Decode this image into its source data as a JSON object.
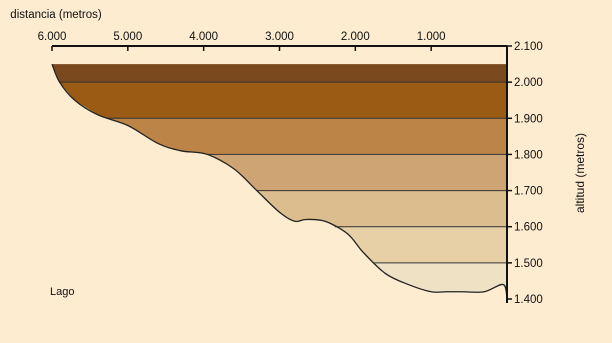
{
  "colors": {
    "background": "#fdecd0",
    "axis": "#111111",
    "profile_line": "#222222",
    "bands": [
      "#efe2c4",
      "#e7d0a6",
      "#dcbd8e",
      "#cea474",
      "#bd8448",
      "#9b5b14",
      "#7a4a1e"
    ]
  },
  "chart_data": {
    "type": "area",
    "orientation": "rotated 180 degrees",
    "xlabel": "distancia (metros)",
    "ylabel": "altitud (metros)",
    "xlim": [
      0,
      6000
    ],
    "ylim": [
      1400,
      2100
    ],
    "x_ticks": [
      1000,
      2000,
      3000,
      4000,
      5000,
      6000
    ],
    "x_tick_labels": [
      "1.000",
      "2.000",
      "3.000",
      "4.000",
      "5.000",
      "6.000"
    ],
    "y_ticks": [
      1400,
      1500,
      1600,
      1700,
      1800,
      1900,
      2000,
      2100
    ],
    "y_tick_labels": [
      "1.400",
      "1.500",
      "1.600",
      "1.700",
      "1.800",
      "1.900",
      "2.000",
      "2.100"
    ],
    "annotation": "Lago",
    "band_boundaries": [
      1400,
      1500,
      1600,
      1700,
      1800,
      1900,
      2000,
      2050
    ],
    "profile": {
      "x": [
        0,
        50,
        300,
        600,
        800,
        1000,
        1300,
        1600,
        1900,
        2100,
        2400,
        2650,
        2800,
        3000,
        3300,
        3600,
        3950,
        4300,
        4600,
        5000,
        5400,
        5700,
        5900,
        6000
      ],
      "y": [
        1400,
        1440,
        1420,
        1420,
        1420,
        1420,
        1440,
        1470,
        1530,
        1580,
        1615,
        1620,
        1615,
        1640,
        1700,
        1760,
        1800,
        1810,
        1830,
        1880,
        1910,
        1950,
        2000,
        2050
      ]
    }
  }
}
